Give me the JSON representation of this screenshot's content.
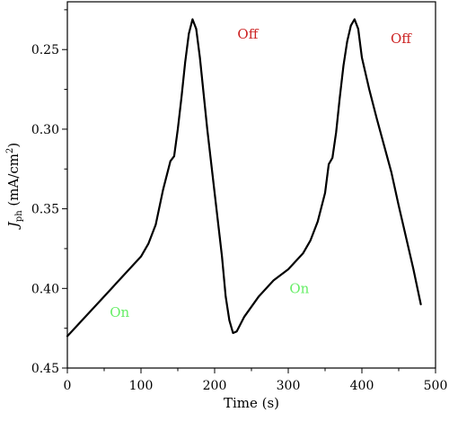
{
  "chart_data": {
    "type": "line",
    "xlabel": "Time (s)",
    "ylabel": {
      "symbol": "J",
      "subscript": "ph",
      "unit_prefix": " (mA/cm",
      "unit_sup": "2",
      "unit_suffix": ")"
    },
    "xlim": [
      0,
      500
    ],
    "ylim": [
      0.45,
      0.22
    ],
    "y_inverted": true,
    "grid": false,
    "x_ticks": [
      0,
      100,
      200,
      300,
      400,
      500
    ],
    "x_tick_labels": [
      "0",
      "100",
      "200",
      "300",
      "400",
      "500"
    ],
    "y_ticks": [
      0.25,
      0.3,
      0.35,
      0.4,
      0.45
    ],
    "y_tick_labels": [
      "0.25",
      "0.30",
      "0.35",
      "0.40",
      "0.45"
    ],
    "series": [
      {
        "color": "#000000",
        "x": [
          0,
          50,
          100,
          110,
          120,
          130,
          140,
          145,
          150,
          155,
          160,
          165,
          170,
          175,
          180,
          190,
          200,
          210,
          215,
          220,
          225,
          230,
          240,
          260,
          280,
          300,
          320,
          330,
          340,
          350,
          355,
          360,
          365,
          370,
          375,
          380,
          385,
          390,
          395,
          400,
          410,
          420,
          430,
          440,
          450,
          460,
          470,
          480
        ],
        "y": [
          0.43,
          0.405,
          0.38,
          0.372,
          0.36,
          0.338,
          0.32,
          0.317,
          0.3,
          0.28,
          0.258,
          0.24,
          0.231,
          0.237,
          0.255,
          0.3,
          0.34,
          0.38,
          0.405,
          0.42,
          0.428,
          0.427,
          0.418,
          0.405,
          0.395,
          0.388,
          0.378,
          0.37,
          0.358,
          0.34,
          0.322,
          0.318,
          0.302,
          0.28,
          0.26,
          0.245,
          0.235,
          0.231,
          0.237,
          0.255,
          0.275,
          0.293,
          0.31,
          0.327,
          0.348,
          0.368,
          0.388,
          0.41
        ]
      }
    ],
    "annotations": [
      {
        "text": "Off",
        "x": 245,
        "y": 0.243,
        "color": "#cc2222"
      },
      {
        "text": "Off",
        "x": 453,
        "y": 0.246,
        "color": "#cc2222"
      },
      {
        "text": "On",
        "x": 71,
        "y": 0.418,
        "color": "#66ee66"
      },
      {
        "text": "On",
        "x": 315,
        "y": 0.403,
        "color": "#66ee66"
      }
    ]
  }
}
